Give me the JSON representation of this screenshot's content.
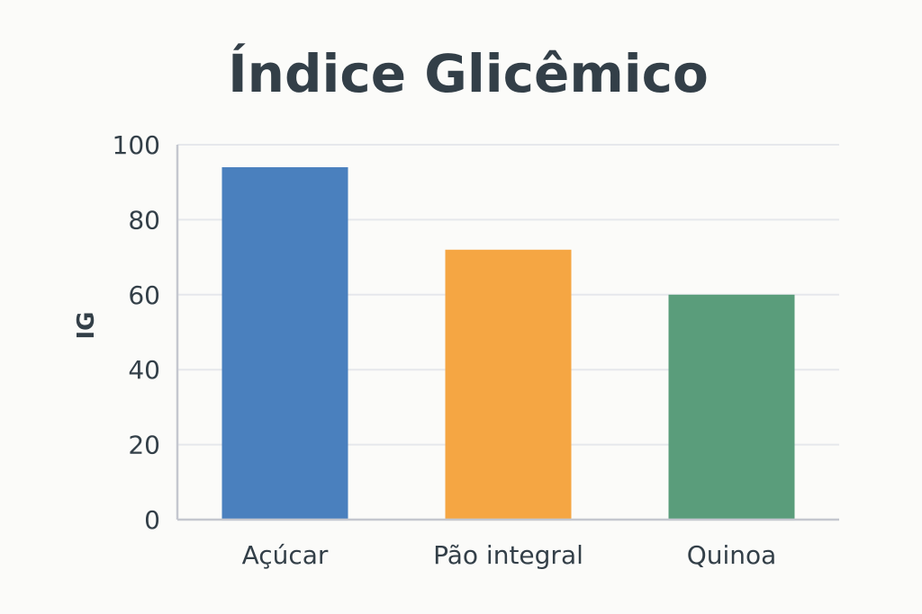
{
  "chart_data": {
    "type": "bar",
    "title": "Índice Glicêmico",
    "xlabel": "",
    "ylabel": "IG",
    "categories": [
      "Açúcar",
      "Pão integral",
      "Quinoa"
    ],
    "values": [
      94,
      72,
      60
    ],
    "colors": [
      "#4a80be",
      "#f5a643",
      "#5a9d7b"
    ],
    "ylim": [
      0,
      100
    ],
    "yticks": [
      0,
      20,
      40,
      60,
      80,
      100
    ],
    "grid": true,
    "legend": "none"
  }
}
